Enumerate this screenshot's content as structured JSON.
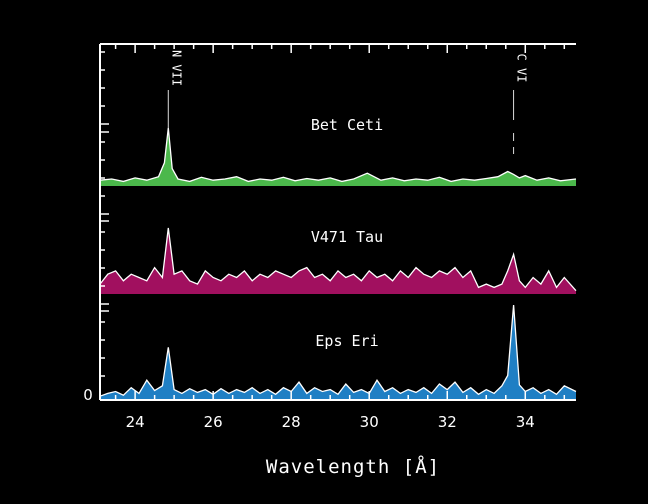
{
  "chart_data": {
    "type": "area",
    "title": "",
    "xlabel": "Wavelength [Å]",
    "ylabel": "",
    "xlim": [
      23.1,
      35.3
    ],
    "x_ticks": [
      24,
      26,
      28,
      30,
      32,
      34
    ],
    "y_zero_label": "0",
    "series": [
      {
        "name": "Bet Ceti",
        "color": "#4bb84b",
        "x": [
          23.1,
          23.4,
          23.7,
          24.0,
          24.3,
          24.6,
          24.75,
          24.85,
          24.95,
          25.1,
          25.4,
          25.7,
          26.0,
          26.3,
          26.6,
          26.9,
          27.2,
          27.5,
          27.8,
          28.1,
          28.4,
          28.7,
          29.0,
          29.3,
          29.6,
          29.95,
          30.3,
          30.6,
          30.9,
          31.2,
          31.5,
          31.8,
          32.1,
          32.4,
          32.7,
          33.0,
          33.3,
          33.55,
          33.7,
          33.85,
          34.0,
          34.3,
          34.6,
          34.9,
          35.3
        ],
        "y": [
          0.1,
          0.12,
          0.08,
          0.14,
          0.1,
          0.16,
          0.4,
          1.0,
          0.3,
          0.12,
          0.08,
          0.15,
          0.1,
          0.12,
          0.16,
          0.08,
          0.12,
          0.1,
          0.15,
          0.09,
          0.13,
          0.1,
          0.14,
          0.08,
          0.12,
          0.22,
          0.1,
          0.14,
          0.09,
          0.12,
          0.1,
          0.15,
          0.08,
          0.12,
          0.1,
          0.13,
          0.16,
          0.25,
          0.2,
          0.14,
          0.18,
          0.1,
          0.14,
          0.09,
          0.12
        ]
      },
      {
        "name": "V471 Tau",
        "color": "#a1105f",
        "x": [
          23.1,
          23.3,
          23.5,
          23.7,
          23.9,
          24.1,
          24.3,
          24.5,
          24.7,
          24.85,
          25.0,
          25.2,
          25.4,
          25.6,
          25.8,
          26.0,
          26.2,
          26.4,
          26.6,
          26.8,
          27.0,
          27.2,
          27.4,
          27.6,
          27.8,
          28.0,
          28.2,
          28.4,
          28.6,
          28.8,
          29.0,
          29.2,
          29.4,
          29.6,
          29.8,
          30.0,
          30.2,
          30.4,
          30.6,
          30.8,
          31.0,
          31.2,
          31.4,
          31.6,
          31.8,
          32.0,
          32.2,
          32.4,
          32.6,
          32.8,
          33.0,
          33.2,
          33.4,
          33.55,
          33.7,
          33.85,
          34.0,
          34.2,
          34.4,
          34.6,
          34.8,
          35.0,
          35.3
        ],
        "y": [
          0.15,
          0.3,
          0.35,
          0.2,
          0.3,
          0.25,
          0.2,
          0.4,
          0.25,
          1.0,
          0.3,
          0.35,
          0.2,
          0.15,
          0.35,
          0.25,
          0.2,
          0.3,
          0.25,
          0.35,
          0.2,
          0.3,
          0.25,
          0.35,
          0.3,
          0.25,
          0.35,
          0.4,
          0.25,
          0.3,
          0.2,
          0.35,
          0.25,
          0.3,
          0.2,
          0.35,
          0.25,
          0.3,
          0.2,
          0.35,
          0.25,
          0.4,
          0.3,
          0.25,
          0.35,
          0.3,
          0.4,
          0.25,
          0.35,
          0.1,
          0.15,
          0.1,
          0.15,
          0.35,
          0.6,
          0.2,
          0.1,
          0.25,
          0.15,
          0.35,
          0.1,
          0.25,
          0.05
        ]
      },
      {
        "name": "Eps Eri",
        "color": "#1f7fc4",
        "x": [
          23.1,
          23.3,
          23.5,
          23.7,
          23.9,
          24.1,
          24.3,
          24.5,
          24.7,
          24.85,
          25.0,
          25.2,
          25.4,
          25.6,
          25.8,
          26.0,
          26.2,
          26.4,
          26.6,
          26.8,
          27.0,
          27.2,
          27.4,
          27.6,
          27.8,
          28.0,
          28.2,
          28.4,
          28.6,
          28.8,
          29.0,
          29.2,
          29.4,
          29.6,
          29.8,
          30.0,
          30.2,
          30.4,
          30.6,
          30.8,
          31.0,
          31.2,
          31.4,
          31.6,
          31.8,
          32.0,
          32.2,
          32.4,
          32.6,
          32.8,
          33.0,
          33.2,
          33.4,
          33.55,
          33.7,
          33.85,
          34.0,
          34.2,
          34.4,
          34.6,
          34.8,
          35.0,
          35.3
        ],
        "y": [
          0.03,
          0.06,
          0.08,
          0.04,
          0.12,
          0.06,
          0.2,
          0.09,
          0.14,
          0.55,
          0.1,
          0.06,
          0.11,
          0.07,
          0.1,
          0.05,
          0.11,
          0.06,
          0.1,
          0.07,
          0.12,
          0.06,
          0.1,
          0.05,
          0.12,
          0.08,
          0.18,
          0.06,
          0.12,
          0.08,
          0.1,
          0.05,
          0.16,
          0.07,
          0.1,
          0.06,
          0.2,
          0.08,
          0.12,
          0.06,
          0.1,
          0.07,
          0.12,
          0.06,
          0.16,
          0.1,
          0.18,
          0.07,
          0.12,
          0.05,
          0.1,
          0.06,
          0.14,
          0.25,
          1.0,
          0.15,
          0.08,
          0.12,
          0.06,
          0.1,
          0.05,
          0.14,
          0.08
        ]
      }
    ],
    "annotations": [
      {
        "label": "N VII",
        "x": 24.85
      },
      {
        "label": "C VI",
        "x": 33.7
      }
    ]
  }
}
